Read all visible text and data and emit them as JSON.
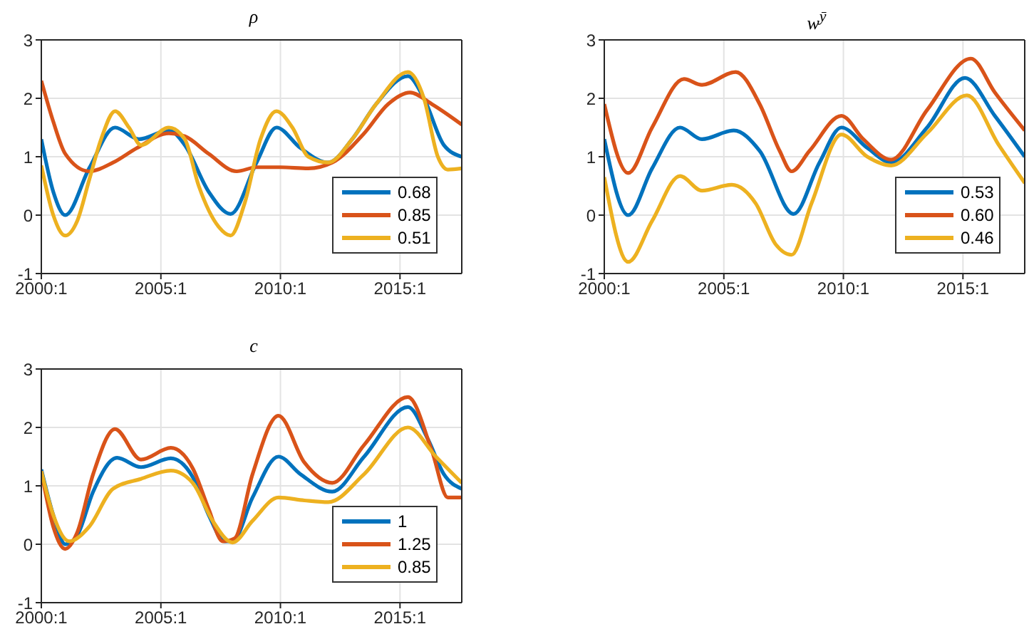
{
  "chart_data": [
    {
      "type": "line",
      "title": "ρ",
      "xlim": [
        "2000-01",
        "2017-08"
      ],
      "xticks": [
        {
          "value": "2000-01",
          "label": "2000:1"
        },
        {
          "value": "2005-01",
          "label": "2005:1"
        },
        {
          "value": "2010-01",
          "label": "2010:1"
        },
        {
          "value": "2015-01",
          "label": "2015:1"
        }
      ],
      "ylim": [
        -1,
        3
      ],
      "yticks": [
        -1,
        0,
        1,
        2,
        3
      ],
      "grid": true,
      "legend": "bottom right",
      "line_style": "solid",
      "series": [
        {
          "name": "0.68",
          "color": "#0072bd",
          "x": [
            "2000-01",
            "2000-07",
            "2001-01",
            "2002-01",
            "2003-02",
            "2004-02",
            "2005-05",
            "2006-01",
            "2007-01",
            "2007-12",
            "2009-01",
            "2009-11",
            "2010-11",
            "2012-01",
            "2013-01",
            "2014-01",
            "2015-05",
            "2016-01",
            "2016-11",
            "2017-08"
          ],
          "values": [
            1.3,
            0.4,
            0,
            0.8,
            1.5,
            1.3,
            1.45,
            1.2,
            0.4,
            0.02,
            0.9,
            1.5,
            1.15,
            0.9,
            1.3,
            1.9,
            2.38,
            2.0,
            1.2,
            1.0
          ]
        },
        {
          "name": "0.85",
          "color": "#d95319",
          "x": [
            "2000-01",
            "2000-07",
            "2001-01",
            "2002-01",
            "2003-01",
            "2004-01",
            "2005-05",
            "2006-01",
            "2007-01",
            "2008-03",
            "2009-01",
            "2010-01",
            "2011-03",
            "2012-03",
            "2013-07",
            "2014-07",
            "2015-06",
            "2016-05",
            "2017-08"
          ],
          "values": [
            2.3,
            1.6,
            1.05,
            0.75,
            0.9,
            1.15,
            1.4,
            1.35,
            1.05,
            0.75,
            0.82,
            0.82,
            0.8,
            0.9,
            1.4,
            1.9,
            2.1,
            1.9,
            1.55
          ]
        },
        {
          "name": "0.51",
          "color": "#edb120",
          "x": [
            "2000-01",
            "2000-07",
            "2001-01",
            "2001-07",
            "2002-01",
            "2002-07",
            "2003-02",
            "2003-09",
            "2004-03",
            "2005-05",
            "2006-01",
            "2006-08",
            "2007-06",
            "2007-12",
            "2008-07",
            "2009-03",
            "2009-11",
            "2010-07",
            "2011-03",
            "2012-01",
            "2013-01",
            "2014-01",
            "2015-05",
            "2016-01",
            "2016-08",
            "2017-01",
            "2017-08"
          ],
          "values": [
            0.85,
            0,
            -0.35,
            -0.1,
            0.6,
            1.3,
            1.78,
            1.5,
            1.2,
            1.5,
            1.3,
            0.5,
            -0.2,
            -0.35,
            0.2,
            1.3,
            1.78,
            1.5,
            1.0,
            0.9,
            1.3,
            1.9,
            2.45,
            2.0,
            1.0,
            0.78,
            0.8
          ]
        }
      ]
    },
    {
      "type": "line",
      "title": "w$^{ȳ}$",
      "xlim": [
        "2000-01",
        "2017-08"
      ],
      "xticks": [
        {
          "value": "2000-01",
          "label": "2000:1"
        },
        {
          "value": "2005-01",
          "label": "2005:1"
        },
        {
          "value": "2010-01",
          "label": "2010:1"
        },
        {
          "value": "2015-01",
          "label": "2015:1"
        }
      ],
      "ylim": [
        -1,
        3
      ],
      "yticks": [
        -1,
        0,
        1,
        2,
        3
      ],
      "grid": true,
      "legend": "bottom right",
      "line_style": "solid",
      "series": [
        {
          "name": "0.53",
          "color": "#0072bd",
          "x": [
            "2000-01",
            "2001-01",
            "2002-01",
            "2003-03",
            "2004-02",
            "2005-06",
            "2006-07",
            "2007-12",
            "2009-01",
            "2009-12",
            "2011-01",
            "2012-01",
            "2013-07",
            "2015-02",
            "2016-05",
            "2017-08"
          ],
          "values": [
            1.3,
            0,
            0.8,
            1.5,
            1.3,
            1.45,
            1.1,
            0.02,
            0.9,
            1.5,
            1.15,
            0.9,
            1.5,
            2.35,
            1.7,
            1.0
          ]
        },
        {
          "name": "0.60",
          "color": "#d95319",
          "x": [
            "2000-01",
            "2001-01",
            "2002-01",
            "2003-05",
            "2004-02",
            "2005-07",
            "2006-07",
            "2007-05",
            "2007-11",
            "2008-08",
            "2009-12",
            "2010-11",
            "2012-01",
            "2013-07",
            "2015-05",
            "2016-05",
            "2017-08"
          ],
          "values": [
            1.9,
            0.72,
            1.5,
            2.33,
            2.23,
            2.45,
            1.9,
            1.1,
            0.75,
            1.1,
            1.7,
            1.3,
            0.95,
            1.8,
            2.68,
            2.1,
            1.45
          ]
        },
        {
          "name": "0.46",
          "color": "#edb120",
          "x": [
            "2000-01",
            "2001-01",
            "2002-01",
            "2003-03",
            "2004-02",
            "2005-05",
            "2006-05",
            "2007-03",
            "2007-11",
            "2008-09",
            "2009-12",
            "2011-01",
            "2012-01",
            "2013-07",
            "2015-03",
            "2016-07",
            "2017-08"
          ],
          "values": [
            0.65,
            -0.8,
            -0.1,
            0.67,
            0.42,
            0.52,
            0.2,
            -0.5,
            -0.68,
            0.2,
            1.38,
            1.0,
            0.85,
            1.4,
            2.05,
            1.2,
            0.55
          ]
        }
      ]
    },
    {
      "type": "line",
      "title": "c",
      "xlim": [
        "2000-01",
        "2017-08"
      ],
      "xticks": [
        {
          "value": "2000-01",
          "label": "2000:1"
        },
        {
          "value": "2005-01",
          "label": "2005:1"
        },
        {
          "value": "2010-01",
          "label": "2010:1"
        },
        {
          "value": "2015-01",
          "label": "2015:1"
        }
      ],
      "ylim": [
        -1,
        3
      ],
      "yticks": [
        -1,
        0,
        1,
        2,
        3
      ],
      "grid": true,
      "legend": "bottom right",
      "line_style": "solid",
      "series": [
        {
          "name": "1",
          "color": "#0072bd",
          "x": [
            "2000-01",
            "2000-07",
            "2001-01",
            "2001-07",
            "2002-03",
            "2003-03",
            "2004-03",
            "2005-06",
            "2006-05",
            "2007-01",
            "2007-09",
            "2008-01",
            "2008-11",
            "2009-12",
            "2010-11",
            "2012-03",
            "2013-07",
            "2015-05",
            "2016-03",
            "2016-11",
            "2017-08"
          ],
          "values": [
            1.28,
            0.5,
            0,
            0.15,
            0.9,
            1.48,
            1.32,
            1.47,
            1.15,
            0.5,
            0.05,
            0.05,
            0.8,
            1.5,
            1.2,
            0.9,
            1.5,
            2.35,
            1.8,
            1.2,
            0.95
          ]
        },
        {
          "name": "1.25",
          "color": "#d95319",
          "x": [
            "2000-01",
            "2000-07",
            "2001-01",
            "2001-07",
            "2002-03",
            "2003-02",
            "2004-03",
            "2005-06",
            "2006-05",
            "2007-01",
            "2007-08",
            "2008-02",
            "2008-11",
            "2009-12",
            "2011-01",
            "2012-03",
            "2013-07",
            "2015-05",
            "2016-05",
            "2017-01",
            "2017-08"
          ],
          "values": [
            1.25,
            0.3,
            -0.08,
            0.2,
            1.2,
            1.97,
            1.45,
            1.65,
            1.3,
            0.6,
            0.05,
            0.1,
            1.2,
            2.2,
            1.4,
            1.05,
            1.7,
            2.52,
            1.6,
            0.8,
            0.8
          ]
        },
        {
          "name": "0.85",
          "color": "#edb120",
          "x": [
            "2000-01",
            "2000-07",
            "2001-03",
            "2002-01",
            "2003-01",
            "2004-03",
            "2005-06",
            "2006-05",
            "2007-03",
            "2008-01",
            "2008-11",
            "2009-12",
            "2011-01",
            "2012-01",
            "2013-07",
            "2015-05",
            "2016-07",
            "2017-08"
          ],
          "values": [
            1.25,
            0.5,
            0.05,
            0.3,
            0.95,
            1.12,
            1.26,
            1.05,
            0.4,
            0.03,
            0.4,
            0.8,
            0.75,
            0.72,
            1.2,
            2.0,
            1.5,
            1.05
          ]
        }
      ]
    }
  ]
}
